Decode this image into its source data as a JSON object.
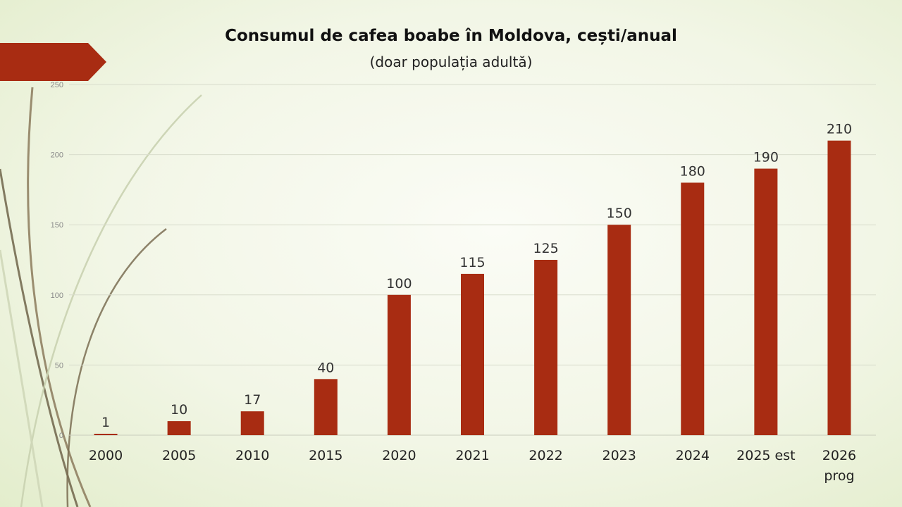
{
  "header": {
    "title": "Consumul de cafea boabe în Moldova, cești/anual",
    "subtitle": "(doar populația adultă)"
  },
  "colors": {
    "bar": "#a82c12",
    "banner": "#a82c12",
    "grid": "#d8dccc"
  },
  "chart_data": {
    "type": "bar",
    "title": "Consumul de cafea boabe în Moldova, cești/anual",
    "subtitle": "(doar populația adultă)",
    "categories": [
      [
        "2000"
      ],
      [
        "2005"
      ],
      [
        "2010"
      ],
      [
        "2015"
      ],
      [
        "2020"
      ],
      [
        "2021"
      ],
      [
        "2022"
      ],
      [
        "2023"
      ],
      [
        "2024"
      ],
      [
        "2025 est"
      ],
      [
        "2026",
        "prog"
      ]
    ],
    "values": [
      1,
      10,
      17,
      40,
      100,
      115,
      125,
      150,
      180,
      190,
      210
    ],
    "ylim": [
      0,
      250
    ],
    "yticks": [
      0,
      50,
      100,
      150,
      200,
      250
    ],
    "grid": true,
    "legend": "none"
  }
}
